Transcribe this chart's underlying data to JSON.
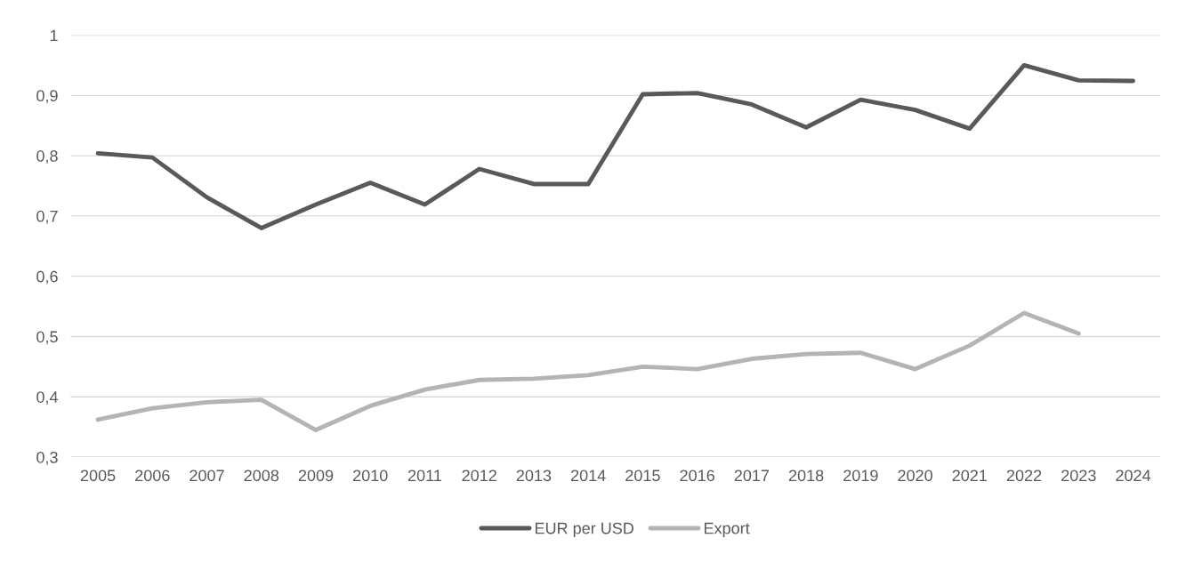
{
  "chart_data": {
    "type": "line",
    "categories": [
      "2005",
      "2006",
      "2007",
      "2008",
      "2009",
      "2010",
      "2011",
      "2012",
      "2013",
      "2014",
      "2015",
      "2016",
      "2017",
      "2018",
      "2019",
      "2020",
      "2021",
      "2022",
      "2023",
      "2024"
    ],
    "series": [
      {
        "name": "EUR per USD",
        "color": "#595959",
        "values": [
          0.804,
          0.797,
          0.731,
          0.68,
          0.719,
          0.755,
          0.719,
          0.778,
          0.753,
          0.753,
          0.902,
          0.904,
          0.885,
          0.847,
          0.893,
          0.876,
          0.845,
          0.95,
          0.925,
          0.924
        ]
      },
      {
        "name": "Export",
        "color": "#b4b4b4",
        "values": [
          0.362,
          0.381,
          0.391,
          0.395,
          0.345,
          0.385,
          0.412,
          0.428,
          0.43,
          0.436,
          0.45,
          0.446,
          0.463,
          0.471,
          0.473,
          0.446,
          0.485,
          0.539,
          0.505,
          null
        ]
      }
    ],
    "ylim": [
      0.3,
      1
    ],
    "yticks": [
      {
        "value": 0.3,
        "label": "0,3"
      },
      {
        "value": 0.4,
        "label": "0,4"
      },
      {
        "value": 0.5,
        "label": "0,5"
      },
      {
        "value": 0.6,
        "label": "0,6"
      },
      {
        "value": 0.7,
        "label": "0,7"
      },
      {
        "value": 0.8,
        "label": "0,8"
      },
      {
        "value": 0.9,
        "label": "0,9"
      },
      1
    ],
    "grid": "y",
    "legend": "bottom",
    "marker": "none",
    "line_style": "solid"
  }
}
